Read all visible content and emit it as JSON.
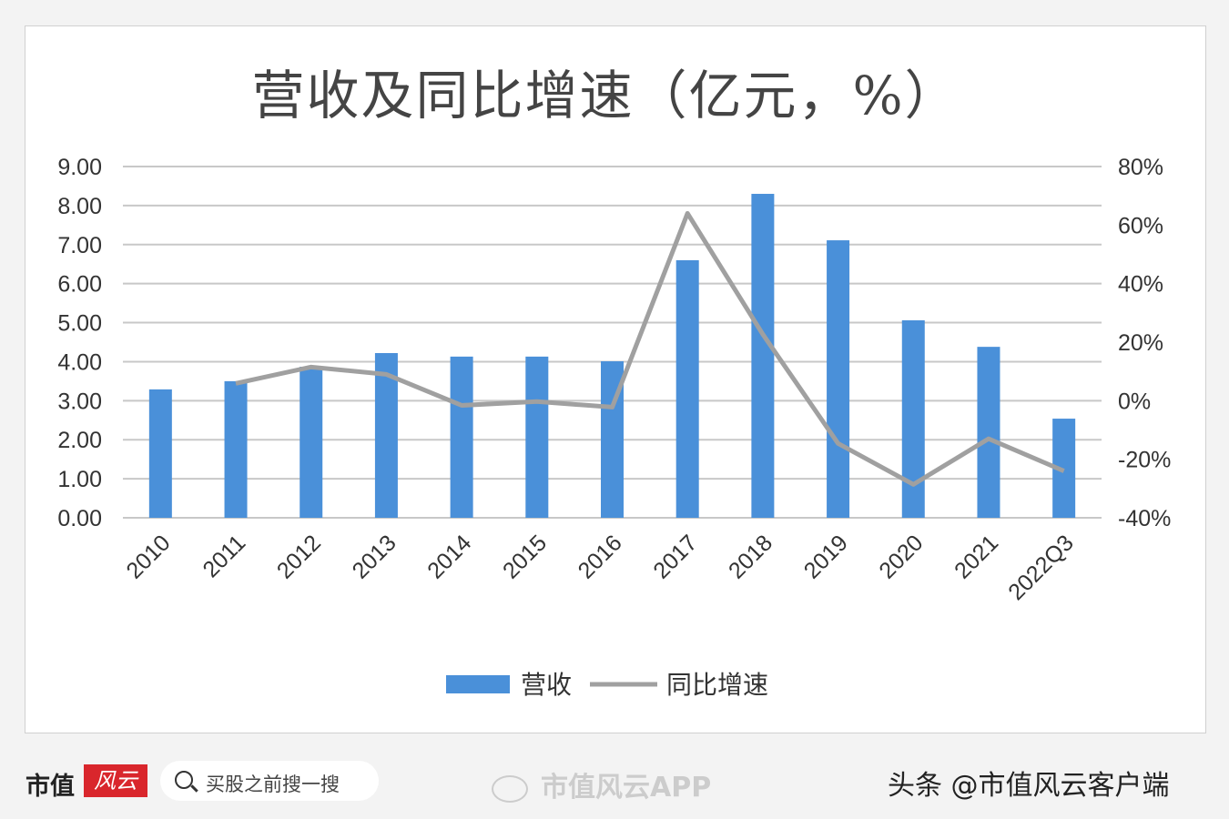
{
  "chart_data": {
    "type": "bar+line",
    "title": "营收及同比增速（亿元，%）",
    "categories": [
      "2010",
      "2011",
      "2012",
      "2013",
      "2014",
      "2015",
      "2016",
      "2017",
      "2018",
      "2019",
      "2020",
      "2021",
      "2022Q3"
    ],
    "series": [
      {
        "name": "营收",
        "type": "bar",
        "axis": "left",
        "color": "#4a90d9",
        "values": [
          3.29,
          3.5,
          3.87,
          4.22,
          4.13,
          4.13,
          4.01,
          6.6,
          8.3,
          7.11,
          5.06,
          4.38,
          2.54
        ]
      },
      {
        "name": "同比增速",
        "type": "line",
        "axis": "right",
        "unit": "%",
        "color": "#a0a0a0",
        "values": [
          null,
          5.9,
          11.5,
          9.0,
          -1.6,
          -0.3,
          -2.2,
          64.0,
          22.7,
          -14.6,
          -28.6,
          -13.0,
          -24.0
        ]
      }
    ],
    "ylim_left": [
      0,
      9
    ],
    "yticks_left": [
      "0.00",
      "1.00",
      "2.00",
      "3.00",
      "4.00",
      "5.00",
      "6.00",
      "7.00",
      "8.00",
      "9.00"
    ],
    "ylim_right": [
      -40,
      80
    ],
    "yticks_right": [
      "-40%",
      "-20%",
      "0%",
      "20%",
      "40%",
      "60%",
      "80%"
    ],
    "grid": true,
    "legend": "bottom"
  },
  "footer": {
    "logo_text": "市值",
    "logo_mark": "风云",
    "search_placeholder": "买股之前搜一搜",
    "weibo_text": "市值风云APP",
    "toutiao_text": "头条 @市值风云客户端"
  }
}
